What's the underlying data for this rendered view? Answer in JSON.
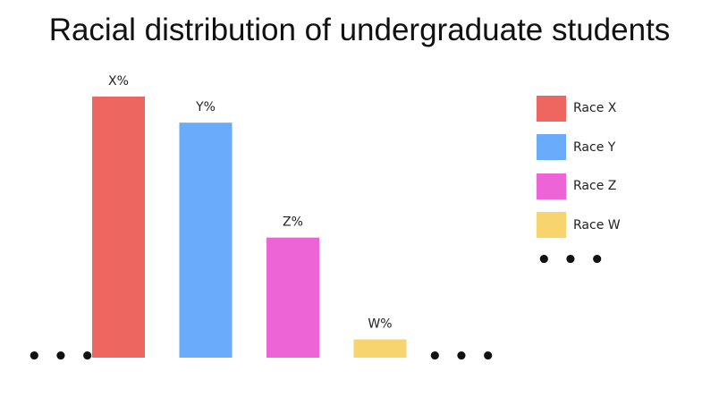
{
  "title": "Racial distribution of undergraduate students",
  "ellipsis_text": "• • •",
  "legend": {
    "items": [
      {
        "label": "Race X",
        "color": "#ee6660"
      },
      {
        "label": "Race Y",
        "color": "#6aabfb"
      },
      {
        "label": "Race Z",
        "color": "#ec64d6"
      },
      {
        "label": "Race W",
        "color": "#f8d46e"
      }
    ]
  },
  "chart_data": {
    "type": "bar",
    "title": "Racial distribution of undergraduate students",
    "categories": [
      "Race X",
      "Race Y",
      "Race Z",
      "Race W"
    ],
    "values": [
      100,
      90,
      46,
      7
    ],
    "value_labels": [
      "X%",
      "Y%",
      "Z%",
      "W%"
    ],
    "colors": [
      "#ee6660",
      "#6aabfb",
      "#ec64d6",
      "#f8d46e"
    ],
    "ylim": [
      0,
      100
    ],
    "grid": false,
    "legend_position": "right"
  }
}
